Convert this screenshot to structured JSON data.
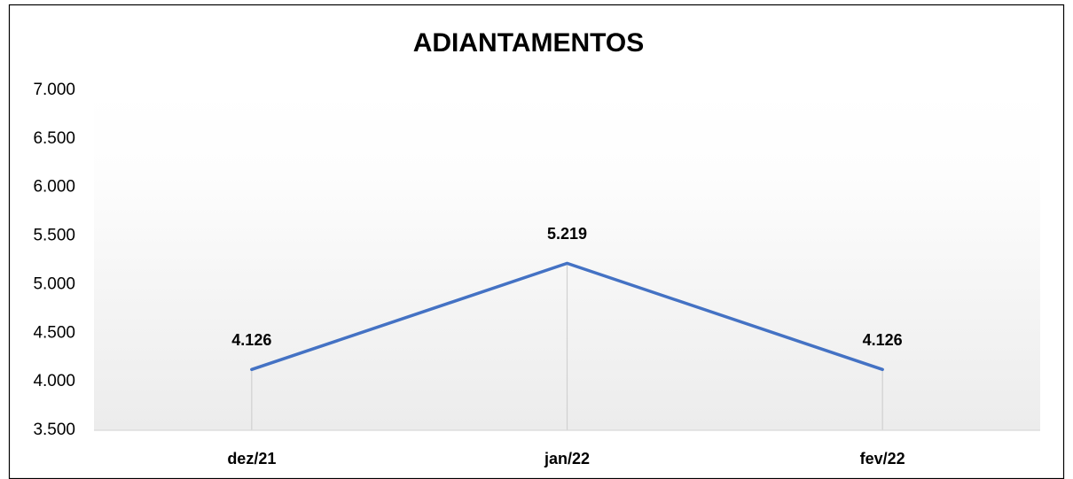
{
  "chart_data": {
    "type": "line",
    "title": "ADIANTAMENTOS",
    "categories": [
      "dez/21",
      "jan/22",
      "fev/22"
    ],
    "values": [
      4126,
      5219,
      4126
    ],
    "value_labels": [
      "4.126",
      "5.219",
      "4.126"
    ],
    "color": "#4472c4",
    "ylim": [
      3500,
      7000
    ],
    "yticks": [
      {
        "value": 3500,
        "label": "3.500"
      },
      {
        "value": 4000,
        "label": "4.000"
      },
      {
        "value": 4500,
        "label": "4.500"
      },
      {
        "value": 5000,
        "label": "5.000"
      },
      {
        "value": 5500,
        "label": "5.500"
      },
      {
        "value": 6000,
        "label": "6.000"
      },
      {
        "value": 6500,
        "label": "6.500"
      },
      {
        "value": 7000,
        "label": "7.000"
      }
    ],
    "drop_lines": true
  }
}
